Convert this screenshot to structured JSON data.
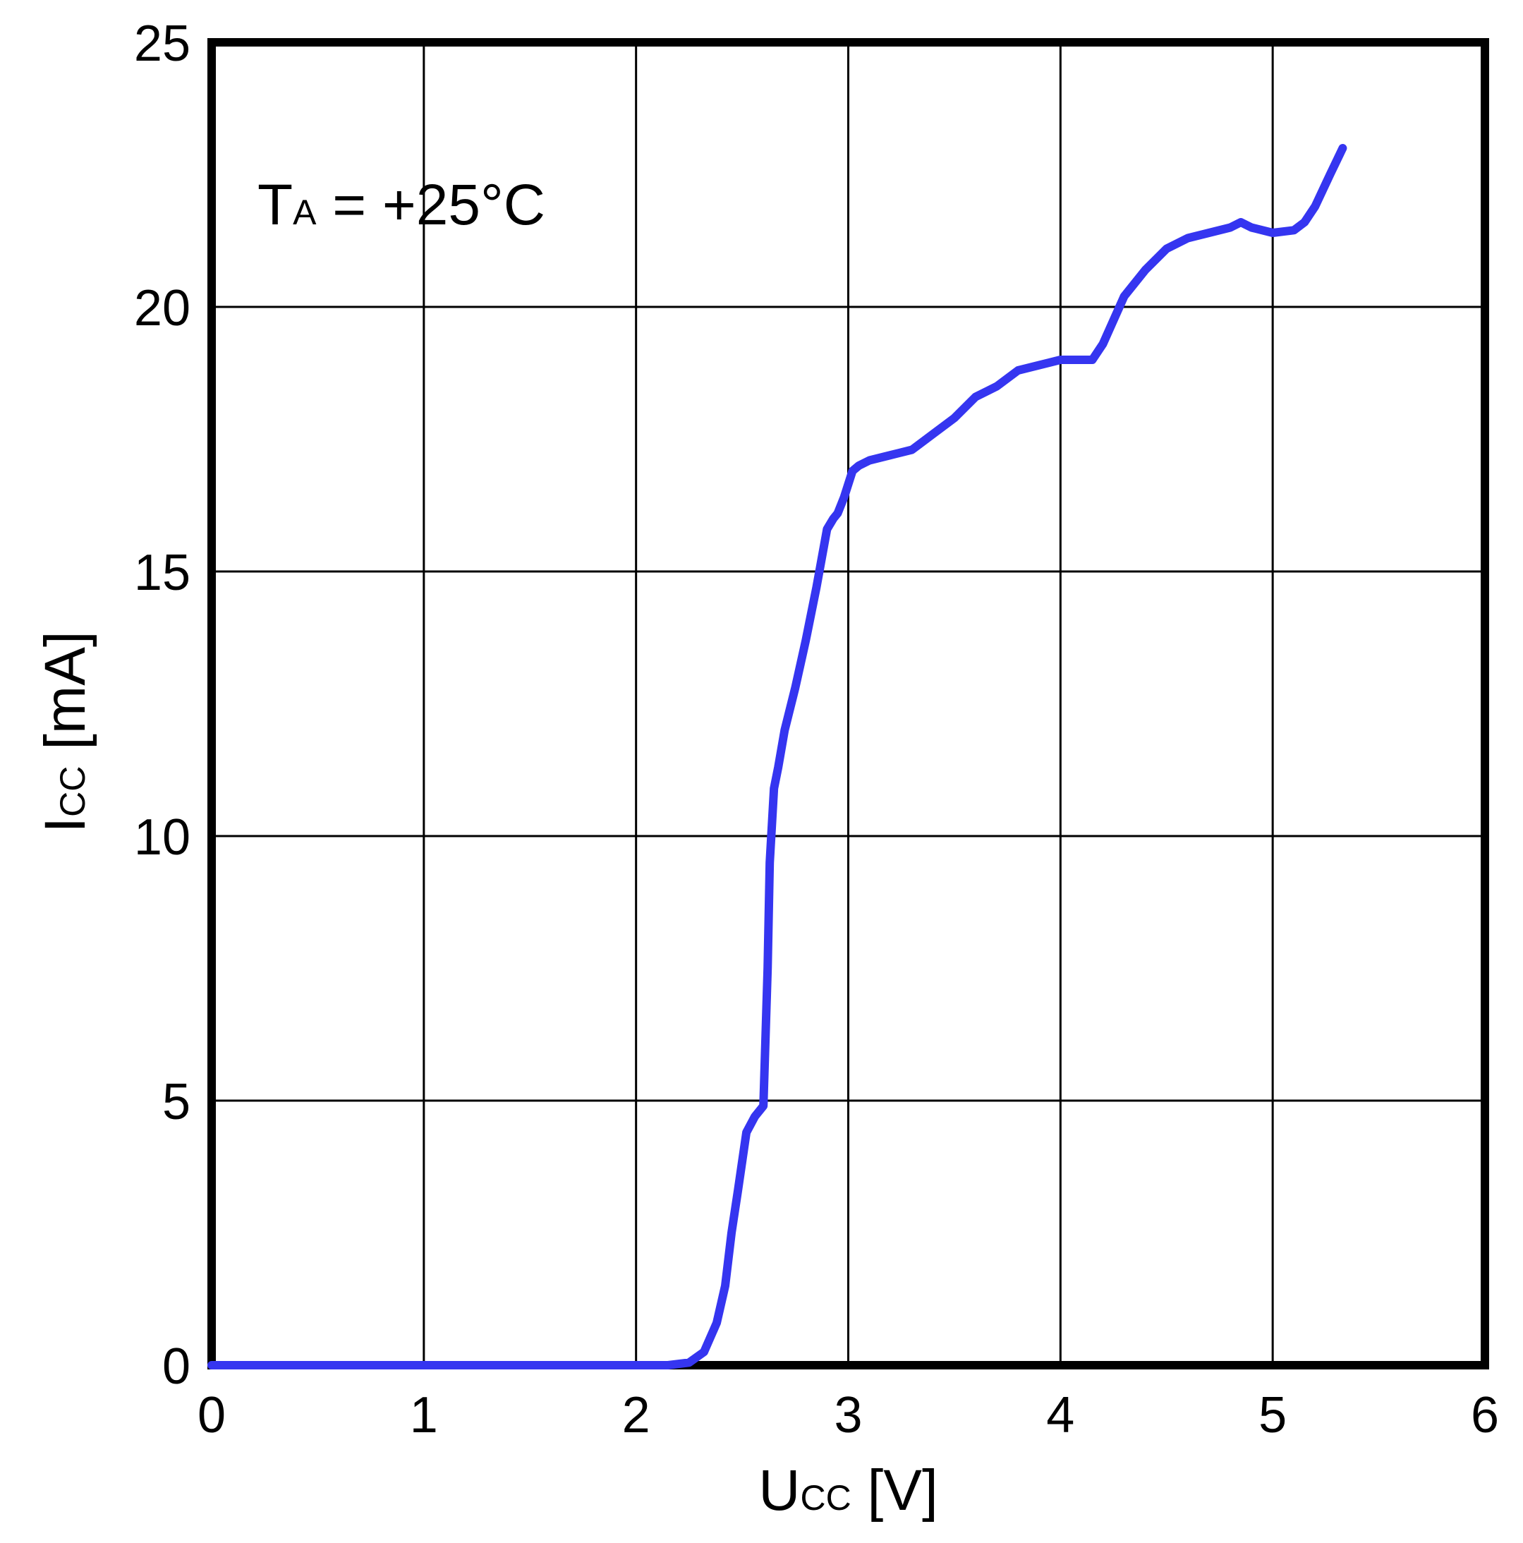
{
  "chart_data": {
    "type": "line",
    "annotation": {
      "main": "T",
      "sub": "A",
      "rest": " = +25°C"
    },
    "xlabel": {
      "main": "U",
      "sub": "CC",
      "unit": " [V]"
    },
    "ylabel": {
      "main": "I",
      "sub": "CC",
      "unit": " [mA]"
    },
    "xlim": [
      0,
      6
    ],
    "ylim": [
      0,
      25
    ],
    "xticks": [
      0,
      1,
      2,
      3,
      4,
      5,
      6
    ],
    "yticks": [
      0,
      5,
      10,
      15,
      20,
      25
    ],
    "grid": true,
    "series": [
      {
        "color": "#3535f0",
        "x": [
          0,
          1.0,
          2.0,
          2.15,
          2.25,
          2.32,
          2.38,
          2.42,
          2.45,
          2.48,
          2.52,
          2.56,
          2.6,
          2.62,
          2.63,
          2.64,
          2.65,
          2.67,
          2.7,
          2.75,
          2.8,
          2.85,
          2.9,
          2.93,
          2.95,
          2.98,
          3.02,
          3.05,
          3.1,
          3.2,
          3.3,
          3.4,
          3.5,
          3.6,
          3.7,
          3.8,
          3.9,
          4.0,
          4.08,
          4.15,
          4.2,
          4.3,
          4.4,
          4.5,
          4.6,
          4.7,
          4.8,
          4.85,
          4.9,
          5.0,
          5.1,
          5.15,
          5.2,
          5.27,
          5.33
        ],
        "y": [
          0,
          0,
          0,
          0,
          0.05,
          0.25,
          0.8,
          1.5,
          2.5,
          3.3,
          4.4,
          4.7,
          4.9,
          7.5,
          9.5,
          10.2,
          10.9,
          11.3,
          12.0,
          12.8,
          13.7,
          14.7,
          15.8,
          16.0,
          16.1,
          16.4,
          16.9,
          17.0,
          17.1,
          17.2,
          17.3,
          17.6,
          17.9,
          18.3,
          18.5,
          18.8,
          18.9,
          19.0,
          19.0,
          19.0,
          19.3,
          20.2,
          20.7,
          21.1,
          21.3,
          21.4,
          21.5,
          21.6,
          21.5,
          21.4,
          21.45,
          21.6,
          21.9,
          22.5,
          23.0
        ]
      }
    ]
  }
}
